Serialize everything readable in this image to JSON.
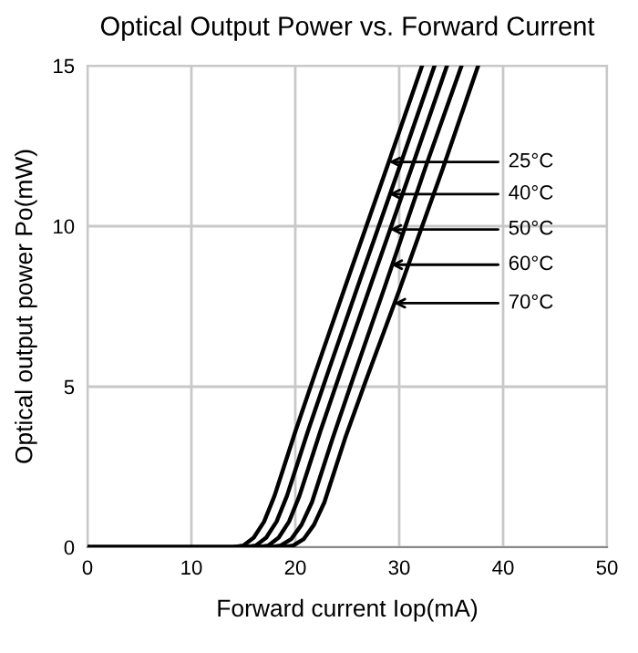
{
  "chart_data": {
    "type": "line",
    "title": "Optical Output Power vs. Forward Current",
    "xlabel": "Forward current Iop(mA)",
    "ylabel": "Optical output power Po(mW)",
    "xlim": [
      0,
      50
    ],
    "ylim": [
      0,
      15
    ],
    "xticks": [
      0,
      10,
      20,
      30,
      40,
      50
    ],
    "yticks": [
      0,
      5,
      10,
      15
    ],
    "grid": true,
    "legend": false,
    "marker": "none",
    "line_style": "solid",
    "series": [
      {
        "color": "#000000",
        "x": [
          0,
          14,
          15,
          16,
          17,
          18,
          19,
          20,
          22,
          25,
          29,
          32.2
        ],
        "values": [
          0,
          0,
          0.05,
          0.3,
          0.8,
          1.6,
          2.6,
          3.6,
          5.5,
          8.3,
          12.0,
          15
        ]
      },
      {
        "color": "#000000",
        "x": [
          0,
          15.2,
          16.2,
          17.2,
          18.2,
          19.2,
          20.2,
          21.2,
          23.2,
          26.2,
          30.2,
          33.4
        ],
        "values": [
          0,
          0,
          0.05,
          0.3,
          0.8,
          1.6,
          2.6,
          3.6,
          5.5,
          8.3,
          12.0,
          15
        ]
      },
      {
        "color": "#000000",
        "x": [
          0,
          16.4,
          17.4,
          18.4,
          19.4,
          20.4,
          21.4,
          22.4,
          24.4,
          27.4,
          31.4,
          34.6
        ],
        "values": [
          0,
          0,
          0.05,
          0.3,
          0.8,
          1.6,
          2.6,
          3.6,
          5.5,
          8.3,
          12.0,
          15
        ]
      },
      {
        "color": "#000000",
        "x": [
          0,
          17.6,
          18.6,
          19.6,
          20.6,
          21.6,
          22.6,
          23.6,
          25.6,
          28.6,
          32.6,
          36.0
        ],
        "values": [
          0,
          0,
          0.05,
          0.25,
          0.7,
          1.4,
          2.4,
          3.4,
          5.3,
          8.1,
          11.9,
          15
        ]
      },
      {
        "color": "#000000",
        "x": [
          0,
          18.8,
          19.8,
          20.8,
          21.8,
          22.8,
          23.8,
          24.8,
          26.8,
          30.0,
          34.2,
          37.6
        ],
        "values": [
          0,
          0,
          0.05,
          0.25,
          0.7,
          1.4,
          2.4,
          3.4,
          5.2,
          8.0,
          11.8,
          15
        ]
      }
    ],
    "annotations": [
      {
        "text": "25°C",
        "x": 29.0,
        "y": 12.0
      },
      {
        "text": "40°C",
        "x": 29.0,
        "y": 11.0
      },
      {
        "text": "50°C",
        "x": 29.1,
        "y": 9.9
      },
      {
        "text": "60°C",
        "x": 29.2,
        "y": 8.8
      },
      {
        "text": "70°C",
        "x": 29.5,
        "y": 7.6
      }
    ]
  }
}
